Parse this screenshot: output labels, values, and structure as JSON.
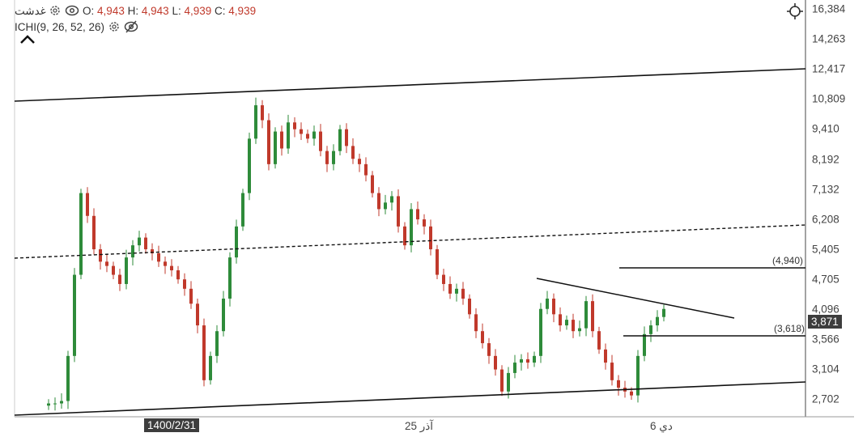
{
  "header": {
    "symbol": "غدشت",
    "open_label": "O:",
    "open": "4,943",
    "high_label": "H:",
    "high": "4,943",
    "low_label": "L:",
    "low": "4,939",
    "close_label": "C:",
    "close": "4,939",
    "indicator": "ICHI(9, 26, 52, 26)"
  },
  "icons": [
    "gear-icon",
    "eye-icon",
    "eye-off-icon",
    "chevron-up-icon",
    "crosshair-icon"
  ],
  "colors": {
    "up": "#2e8b3a",
    "down": "#c0392b",
    "value_text": "#c0392b",
    "tag_bg": "#3d3d3d"
  },
  "chart_data": {
    "type": "candlestick",
    "y_scale": "log",
    "ylim": [
      2600,
      16384
    ],
    "y_ticks": [
      "16,384",
      "14,263",
      "12,417",
      "10,809",
      "9,410",
      "8,192",
      "7,132",
      "6,208",
      "5,405",
      "4,705",
      "4,096",
      "3,566",
      "3,104",
      "2,702"
    ],
    "x_ticks": [
      "1400/2/31",
      "25 آذر",
      "6 دي"
    ],
    "current_price": "3,871",
    "levels": [
      "(4,940)",
      "(3,618)"
    ],
    "closes": [
      2650,
      2650,
      2680,
      3300,
      4800,
      7000,
      6300,
      5400,
      5100,
      5000,
      4800,
      4600,
      5200,
      5500,
      5700,
      5400,
      5300,
      5100,
      5000,
      4900,
      4700,
      4500,
      4200,
      3800,
      2950,
      3300,
      3700,
      4300,
      5200,
      6000,
      7000,
      9000,
      10500,
      9800,
      8000,
      9300,
      8600,
      9700,
      9400,
      9200,
      9000,
      9300,
      8500,
      8000,
      8500,
      9400,
      8700,
      8200,
      8000,
      7600,
      7000,
      6500,
      6700,
      6900,
      6000,
      5500,
      6500,
      6200,
      6000,
      5400,
      4800,
      4600,
      4400,
      4500,
      4300,
      4000,
      3700,
      3500,
      3300,
      3100,
      2800,
      3050,
      3200,
      3250,
      3200,
      3300,
      4100,
      4300,
      4000,
      3800,
      3900,
      3700,
      3750,
      4250,
      3700,
      3400,
      3200,
      2950,
      2850,
      2800,
      2750,
      3300,
      3650,
      3800,
      3950,
      4100
    ]
  }
}
